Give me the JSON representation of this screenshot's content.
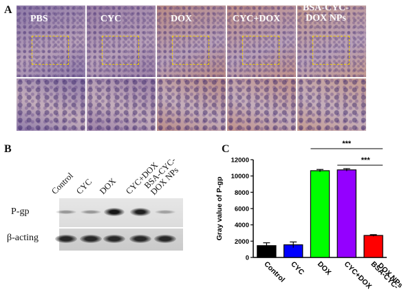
{
  "panel_a": {
    "letter": "A",
    "labels": [
      "PBS",
      "CYC",
      "DOX",
      "CYC+DOX",
      "BSA-CYC-\nDOX NPs"
    ],
    "tile_colors": [
      "#8e7aa8",
      "#9b80a6",
      "#b98a84",
      "#c09088",
      "#c49a8e"
    ]
  },
  "panel_b": {
    "letter": "B",
    "lane_labels": [
      "Control",
      "CYC",
      "DOX",
      "CYC+DOX",
      "BSA-CYC-\nDOX NPs"
    ],
    "row_labels": [
      "P-gp",
      "β-acting"
    ],
    "pgp_band_intensity": [
      0.35,
      0.35,
      0.95,
      0.9,
      0.3
    ],
    "actin_band_intensity": [
      0.85,
      0.85,
      0.85,
      0.85,
      0.85
    ]
  },
  "panel_c": {
    "letter": "C"
  },
  "chart_data": {
    "type": "bar",
    "categories": [
      "Control",
      "CYC",
      "DOX",
      "CYC+DOX",
      "BSA-CYC-DOX NPs"
    ],
    "values": [
      1450,
      1550,
      10650,
      10750,
      2700
    ],
    "errors": [
      350,
      350,
      150,
      150,
      100
    ],
    "colors": [
      "#000000",
      "#0000ff",
      "#00ff00",
      "#9400ff",
      "#ff0000"
    ],
    "ylabel": "Gray value of P-gp",
    "ylim": [
      0,
      12000
    ],
    "yticks": [
      0,
      2000,
      4000,
      6000,
      8000,
      10000,
      12000
    ],
    "significance": [
      {
        "from": 2,
        "to": 4,
        "label": "***"
      },
      {
        "from": 3,
        "to": 4,
        "label": "***"
      }
    ]
  }
}
